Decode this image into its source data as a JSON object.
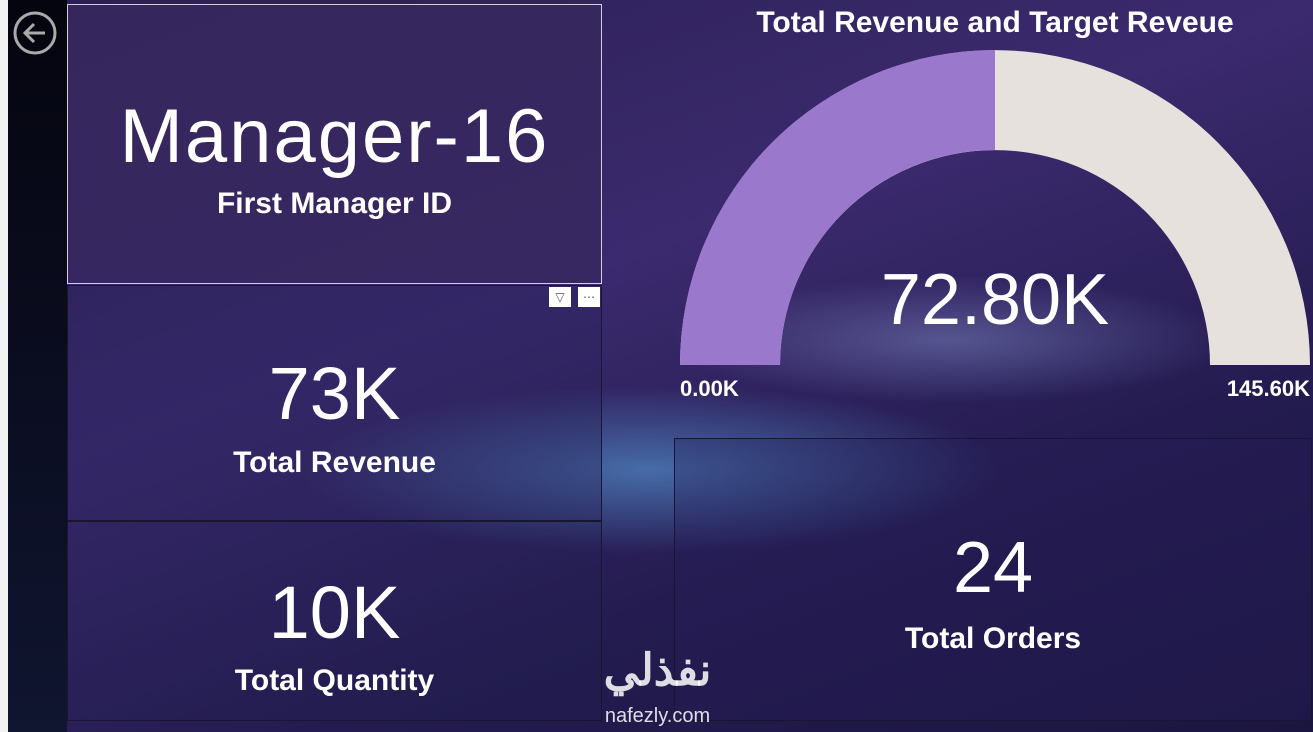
{
  "cards": [
    {
      "value": "Manager-16",
      "label": "First Manager ID"
    },
    {
      "value": "73K",
      "label": "Total Revenue"
    },
    {
      "value": "10K",
      "label": "Total Quantity"
    },
    {
      "value": "24",
      "label": "Total Orders"
    }
  ],
  "watermark": {
    "arabic": "نفذلي",
    "site": "nafezly.com"
  },
  "chart_data": {
    "type": "gauge",
    "title": "Total Revenue and Target Reveue",
    "values": [
      72800
    ],
    "value_labels": [
      "72.80K"
    ],
    "ylim": [
      0,
      145600
    ],
    "yticks": [
      {
        "value": 0,
        "label": "0.00K"
      },
      {
        "value": 145600,
        "label": "145.60K"
      }
    ],
    "color": "#9a78cc",
    "track_color": "#e6e1dc"
  }
}
